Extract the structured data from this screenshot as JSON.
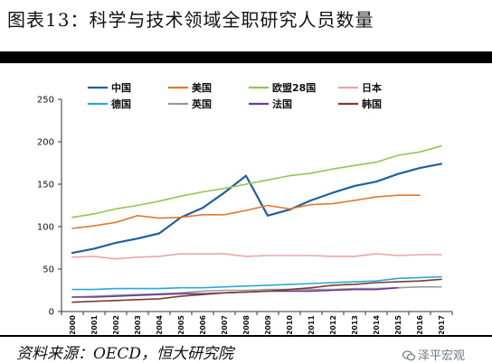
{
  "title": "图表13：科学与技术领域全职研究人员数量",
  "source": "资料来源：OECD，恒大研究院",
  "watermark": "泽平宏观",
  "chart_data": {
    "type": "line",
    "x": [
      "2000",
      "2001",
      "2002",
      "2003",
      "2004",
      "2005",
      "2006",
      "2007",
      "2008",
      "2009",
      "2010",
      "2011",
      "2012",
      "2013",
      "2014",
      "2015",
      "2016",
      "2017"
    ],
    "ylim": [
      0,
      250
    ],
    "yticks": [
      0,
      50,
      100,
      150,
      200,
      250
    ],
    "grid": false,
    "legend_position": "top",
    "series": [
      {
        "name": "中国",
        "color": "#1f5fa6",
        "width": 2.2,
        "values": [
          69,
          74,
          81,
          86,
          92,
          111,
          122,
          140,
          160,
          113,
          120,
          131,
          140,
          148,
          153,
          162,
          169,
          174
        ]
      },
      {
        "name": "美国",
        "color": "#e07a2e",
        "width": 1.6,
        "values": [
          98,
          101,
          105,
          113,
          110,
          111,
          114,
          114,
          119,
          125,
          121,
          126,
          127,
          131,
          135,
          137,
          137,
          null
        ]
      },
      {
        "name": "欧盟28国",
        "color": "#93c556",
        "width": 1.6,
        "values": [
          111,
          115,
          121,
          125,
          130,
          136,
          141,
          145,
          150,
          155,
          160,
          163,
          168,
          172,
          176,
          184,
          188,
          195
        ]
      },
      {
        "name": "日本",
        "color": "#e8a8a8",
        "width": 1.6,
        "values": [
          64,
          65,
          62,
          64,
          65,
          68,
          68,
          68,
          65,
          66,
          66,
          66,
          65,
          65,
          68,
          66,
          67,
          67
        ]
      },
      {
        "name": "德国",
        "color": "#2ba8d6",
        "width": 1.6,
        "values": [
          26,
          26,
          27,
          27,
          27,
          28,
          28,
          29,
          30,
          31,
          32,
          33,
          34,
          35,
          36,
          39,
          40,
          41
        ]
      },
      {
        "name": "英国",
        "color": "#9a9a9a",
        "width": 1.6,
        "values": [
          17,
          18,
          19,
          20,
          21,
          22,
          24,
          25,
          25,
          26,
          26,
          26,
          26,
          27,
          27,
          28,
          29,
          29
        ]
      },
      {
        "name": "法国",
        "color": "#6a3a97",
        "width": 1.6,
        "values": [
          17,
          17,
          18,
          19,
          20,
          21,
          21,
          22,
          23,
          24,
          24,
          24,
          25,
          26,
          26,
          28,
          null,
          null
        ]
      },
      {
        "name": "韩国",
        "color": "#7a3f2a",
        "width": 1.6,
        "values": [
          11,
          12,
          13,
          14,
          15,
          18,
          20,
          22,
          23,
          24,
          26,
          28,
          31,
          32,
          34,
          35,
          36,
          38
        ]
      }
    ]
  }
}
